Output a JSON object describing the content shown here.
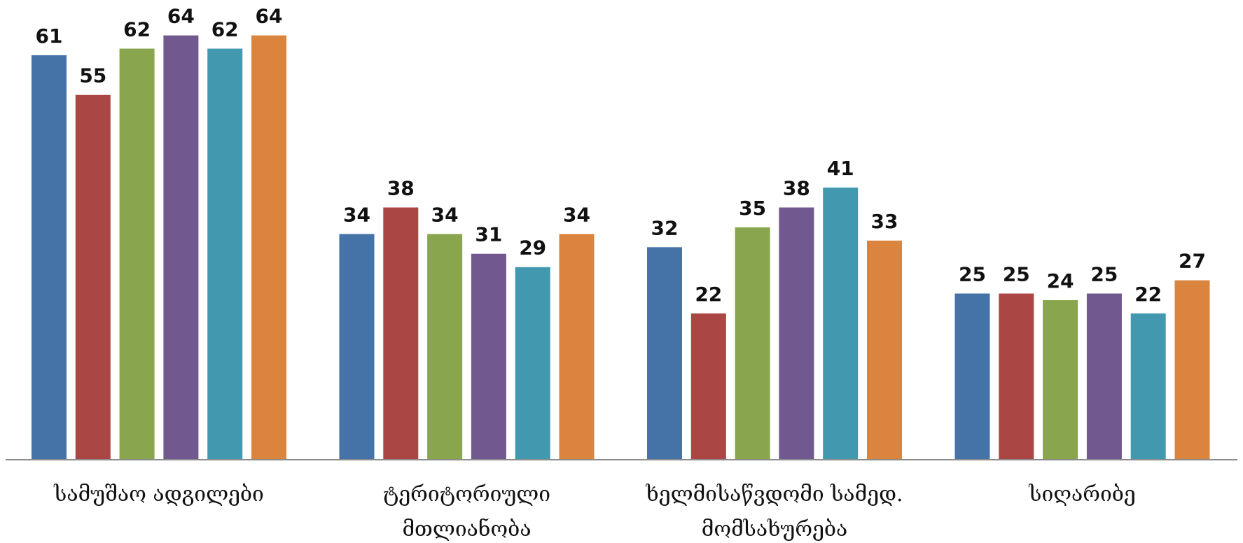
{
  "chart_data": {
    "type": "bar",
    "categories": [
      [
        "სამუშაო ადგილები"
      ],
      [
        "ტერიტორიული",
        "მთლიანობა"
      ],
      [
        "ხელმისაწვდომი სამედ.",
        "მომსახურება"
      ],
      [
        "სიღარიბე"
      ]
    ],
    "series": [
      {
        "values": [
          61,
          34,
          32,
          25
        ],
        "color": "#4572A7"
      },
      {
        "values": [
          55,
          38,
          22,
          25
        ],
        "color": "#AA4643"
      },
      {
        "values": [
          62,
          34,
          35,
          24
        ],
        "color": "#89A54E"
      },
      {
        "values": [
          64,
          31,
          38,
          25
        ],
        "color": "#71588F"
      },
      {
        "values": [
          62,
          29,
          41,
          22
        ],
        "color": "#4198AF"
      },
      {
        "values": [
          64,
          34,
          33,
          27
        ],
        "color": "#DB843D"
      }
    ],
    "ylim": [
      0,
      64
    ],
    "grid": false,
    "legend": "none",
    "xlabel": "",
    "ylabel": ""
  }
}
